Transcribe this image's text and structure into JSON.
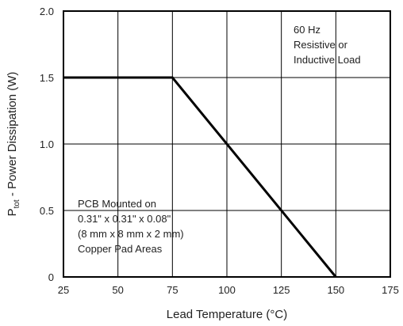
{
  "chart_data": {
    "type": "line",
    "xlabel": "Lead Temperature (°C)",
    "ylabel": {
      "prefix": "P",
      "subscript": "tot",
      "suffix": " - Power Dissipation (W)"
    },
    "xlim": [
      25,
      175
    ],
    "ylim": [
      0,
      2.0
    ],
    "x_ticks": [
      25,
      50,
      75,
      100,
      125,
      150,
      175
    ],
    "y_ticks": [
      0,
      0.5,
      1.0,
      1.5,
      2.0
    ],
    "x_tick_labels": [
      "25",
      "50",
      "75",
      "100",
      "125",
      "150",
      "175"
    ],
    "y_tick_labels": [
      "0",
      "0.5",
      "1.0",
      "1.5",
      "2.0"
    ],
    "grid": true,
    "series": [
      {
        "x": [
          25,
          75,
          150
        ],
        "y": [
          1.5,
          1.5,
          0
        ]
      }
    ],
    "annotations": [
      {
        "lines": [
          "60 Hz",
          "Resistive or",
          "Inductive Load"
        ],
        "position": "top-right"
      },
      {
        "lines": [
          "PCB Mounted on",
          "0.31\" x 0.31\" x 0.08\"",
          "(8 mm x 8 mm x 2 mm)",
          "Copper Pad Areas"
        ],
        "position": "bottom-left"
      }
    ],
    "colors": {
      "line": "#000000",
      "grid": "#000000",
      "frame": "#000000"
    }
  }
}
